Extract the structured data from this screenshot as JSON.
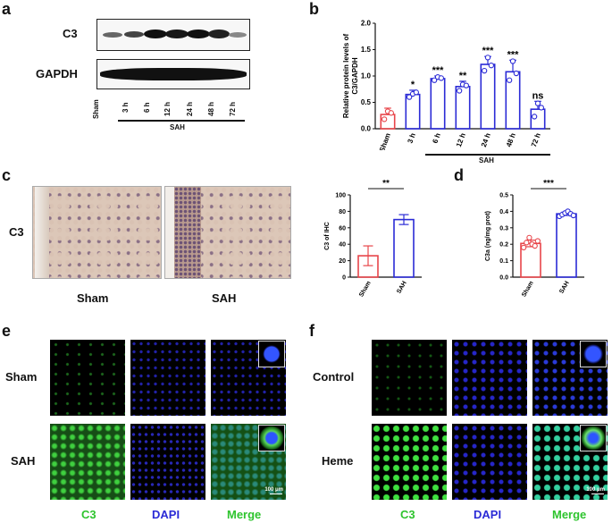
{
  "panels": {
    "a": {
      "letter": "a",
      "rows": [
        "C3",
        "GAPDH"
      ],
      "lanes": [
        "Sham",
        "3 h",
        "6 h",
        "12 h",
        "24 h",
        "48 h",
        "72 h"
      ],
      "group": "SAH"
    },
    "b": {
      "letter": "b",
      "group": "SAH"
    },
    "c": {
      "letter": "c",
      "row": "C3",
      "image_labels": [
        "Sham",
        "SAH"
      ],
      "sig": "**"
    },
    "d": {
      "letter": "d",
      "sig": "***"
    },
    "e": {
      "letter": "e",
      "rows": [
        "Sham",
        "SAH"
      ],
      "cols": [
        "C3",
        "DAPI",
        "Merge"
      ],
      "scale": "100 μm"
    },
    "f": {
      "letter": "f",
      "rows": [
        "Control",
        "Heme"
      ],
      "cols": [
        "C3",
        "DAPI",
        "Merge"
      ],
      "scale": "100 μm"
    }
  },
  "colors": {
    "sham": "#e8454a",
    "sah": "#2b2bd6",
    "c3": "#2ec42e",
    "dapi": "#2b2bd6"
  },
  "chart_data": [
    {
      "type": "bar",
      "panel": "b",
      "ylabel": "Relative protein levels of C3/GAPDH",
      "categories": [
        "Sham",
        "3 h",
        "6 h",
        "12 h",
        "24 h",
        "48 h",
        "72 h"
      ],
      "values": [
        0.27,
        0.65,
        0.95,
        0.8,
        1.22,
        1.08,
        0.37
      ],
      "errors": [
        0.12,
        0.08,
        0.05,
        0.1,
        0.15,
        0.22,
        0.15
      ],
      "points": [
        [
          0.18,
          0.33,
          0.3
        ],
        [
          0.6,
          0.66,
          0.69
        ],
        [
          0.92,
          0.98,
          0.96
        ],
        [
          0.72,
          0.84,
          0.82
        ],
        [
          1.1,
          1.35,
          1.2
        ],
        [
          0.92,
          1.28,
          1.05
        ],
        [
          0.23,
          0.48,
          0.4
        ]
      ],
      "sig": [
        "",
        "*",
        "***",
        "**",
        "***",
        "***",
        "ns"
      ],
      "ylim": [
        0,
        2.0
      ],
      "yticks": [
        "0.0",
        "0.5",
        "1.0",
        "1.5",
        "2.0"
      ]
    },
    {
      "type": "bar",
      "panel": "c",
      "ylabel": "C3 of IHC",
      "categories": [
        "Sham",
        "SAH"
      ],
      "values": [
        26,
        70
      ],
      "errors": [
        12,
        6
      ],
      "ylim": [
        0,
        100
      ],
      "yticks": [
        "0",
        "20",
        "40",
        "60",
        "80",
        "100"
      ]
    },
    {
      "type": "bar",
      "panel": "d",
      "ylabel": "C3a (ng/mg prot)",
      "categories": [
        "Sham",
        "SAH"
      ],
      "values": [
        0.205,
        0.385
      ],
      "errors": [
        0.02,
        0.01
      ],
      "points": [
        [
          0.18,
          0.21,
          0.24,
          0.2,
          0.19,
          0.22
        ],
        [
          0.37,
          0.38,
          0.39,
          0.4,
          0.385,
          0.375
        ]
      ],
      "ylim": [
        0,
        0.5
      ],
      "yticks": [
        "0.0",
        "0.1",
        "0.2",
        "0.3",
        "0.4",
        "0.5"
      ]
    }
  ]
}
